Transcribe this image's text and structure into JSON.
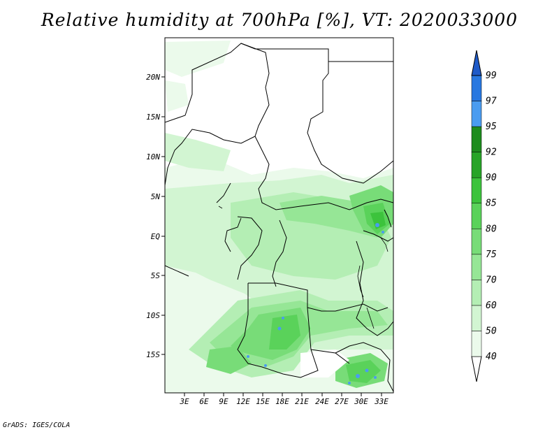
{
  "title": "Relative humidity at 700hPa [%], VT: 2020033000",
  "credit": "GrADS: IGES/COLA",
  "map": {
    "lat_ticks": [
      "20N",
      "15N",
      "10N",
      "5N",
      "EQ",
      "5S",
      "10S",
      "15S"
    ],
    "lon_ticks": [
      "3E",
      "6E",
      "9E",
      "12E",
      "15E",
      "18E",
      "21E",
      "24E",
      "27E",
      "30E",
      "33E"
    ]
  },
  "colorbar": {
    "levels": [
      "40",
      "50",
      "60",
      "70",
      "75",
      "80",
      "85",
      "90",
      "92",
      "95",
      "97",
      "99"
    ],
    "colors": [
      "#ffffff",
      "#ebfaeb",
      "#d2f5d2",
      "#b4eeb4",
      "#96e696",
      "#78dc78",
      "#5ad25a",
      "#3cc33c",
      "#28a428",
      "#1e8c1e",
      "#4a9cf0",
      "#2878e0",
      "#1e5ac8"
    ]
  }
}
